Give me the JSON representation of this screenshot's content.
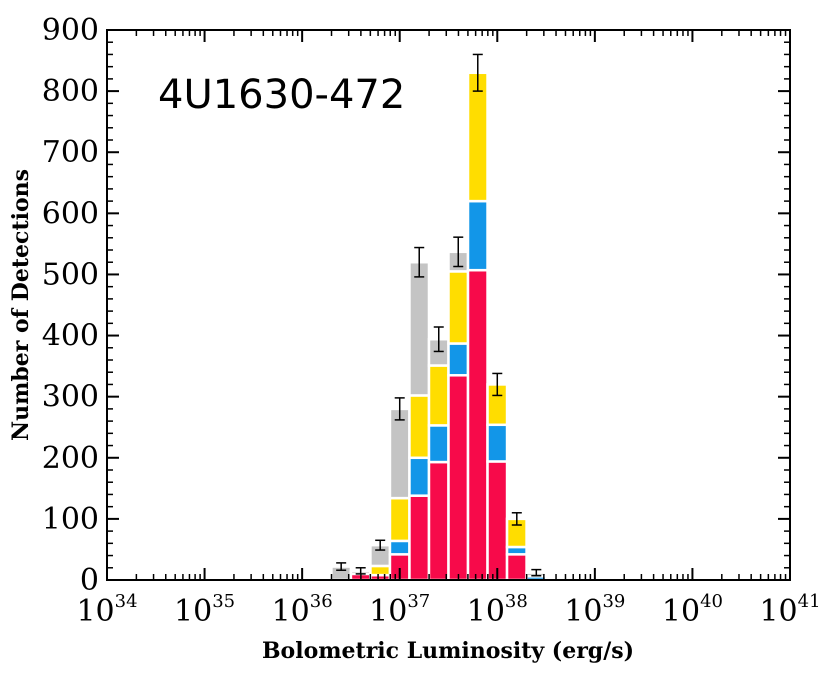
{
  "chart_data": {
    "type": "bar",
    "stacked": true,
    "annotation": "4U1630-472",
    "xlabel": "Bolometric Luminosity (erg/s)",
    "ylabel": "Number of Detections",
    "xscale": "log",
    "xlim_log10": [
      34,
      41
    ],
    "ylim": [
      0,
      900
    ],
    "x_ticks": [
      {
        "base": "10",
        "exp": "34"
      },
      {
        "base": "10",
        "exp": "35"
      },
      {
        "base": "10",
        "exp": "36"
      },
      {
        "base": "10",
        "exp": "37"
      },
      {
        "base": "10",
        "exp": "38"
      },
      {
        "base": "10",
        "exp": "39"
      },
      {
        "base": "10",
        "exp": "40"
      },
      {
        "base": "10",
        "exp": "41"
      }
    ],
    "y_ticks": [
      "0",
      "100",
      "200",
      "300",
      "400",
      "500",
      "600",
      "700",
      "800",
      "900"
    ],
    "bin_width_log10": 0.2,
    "series_colors": [
      "#f70a4a",
      "#1296e8",
      "#ffdd00",
      "#c4c4c4"
    ],
    "bins": [
      {
        "log_lo": 36.3,
        "red": 0,
        "blue": 0,
        "yellow": 0,
        "gray": 22,
        "err": 6
      },
      {
        "log_lo": 36.5,
        "red": 10,
        "blue": 0,
        "yellow": 0,
        "gray": 5,
        "err": 5
      },
      {
        "log_lo": 36.7,
        "red": 8,
        "blue": 0,
        "yellow": 15,
        "gray": 34,
        "err": 8
      },
      {
        "log_lo": 36.9,
        "red": 42,
        "blue": 22,
        "yellow": 70,
        "gray": 146,
        "err": 18
      },
      {
        "log_lo": 37.1,
        "red": 138,
        "blue": 62,
        "yellow": 102,
        "gray": 218,
        "err": 24
      },
      {
        "log_lo": 37.3,
        "red": 193,
        "blue": 60,
        "yellow": 98,
        "gray": 43,
        "err": 20
      },
      {
        "log_lo": 37.5,
        "red": 335,
        "blue": 52,
        "yellow": 118,
        "gray": 32,
        "err": 24
      },
      {
        "log_lo": 37.7,
        "red": 507,
        "blue": 113,
        "yellow": 210,
        "gray": 0,
        "err": 30
      },
      {
        "log_lo": 37.9,
        "red": 194,
        "blue": 60,
        "yellow": 66,
        "gray": 0,
        "err": 18
      },
      {
        "log_lo": 38.1,
        "red": 42,
        "blue": 12,
        "yellow": 46,
        "gray": 0,
        "err": 10
      },
      {
        "log_lo": 38.3,
        "red": 0,
        "blue": 6,
        "yellow": 0,
        "gray": 6,
        "err": 5
      }
    ]
  }
}
